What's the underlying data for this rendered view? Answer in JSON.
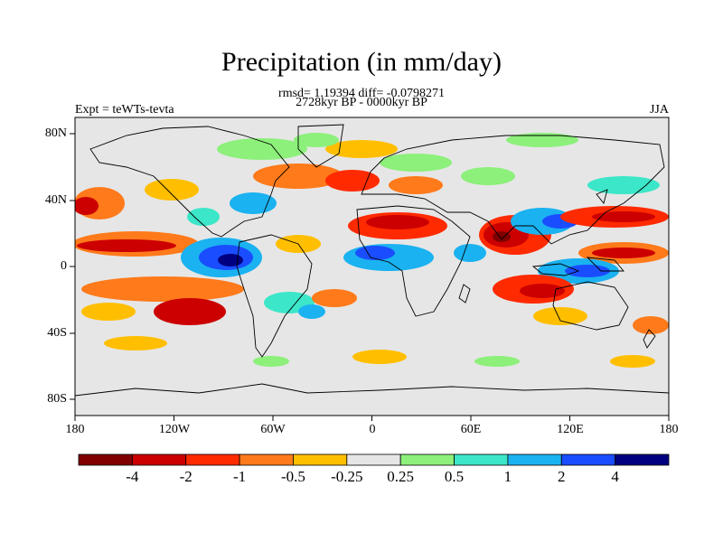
{
  "title": "Precipitation (in mm/day)",
  "stats": "rmsd= 1.19394 diff= -0.0798271",
  "period": "2728kyr BP - 0000kyr BP",
  "experiment": "Expt = teWTs-tevta",
  "season": "JJA",
  "lat_ticks": [
    "80N",
    "40N",
    "0",
    "40S",
    "80S"
  ],
  "lon_ticks": [
    "180",
    "120W",
    "60W",
    "0",
    "60E",
    "120E",
    "180"
  ],
  "colorbar": {
    "labels": [
      "-4",
      "-2",
      "-1",
      "-0.5",
      "-0.25",
      "0.25",
      "0.5",
      "1",
      "2",
      "4"
    ],
    "colors": [
      "#800000",
      "#cc0000",
      "#ff2a00",
      "#ff7a1a",
      "#ffbf00",
      "#e6e6e6",
      "#8cf07a",
      "#3ce6c8",
      "#1ab2f0",
      "#1a4dff",
      "#000080"
    ]
  }
}
